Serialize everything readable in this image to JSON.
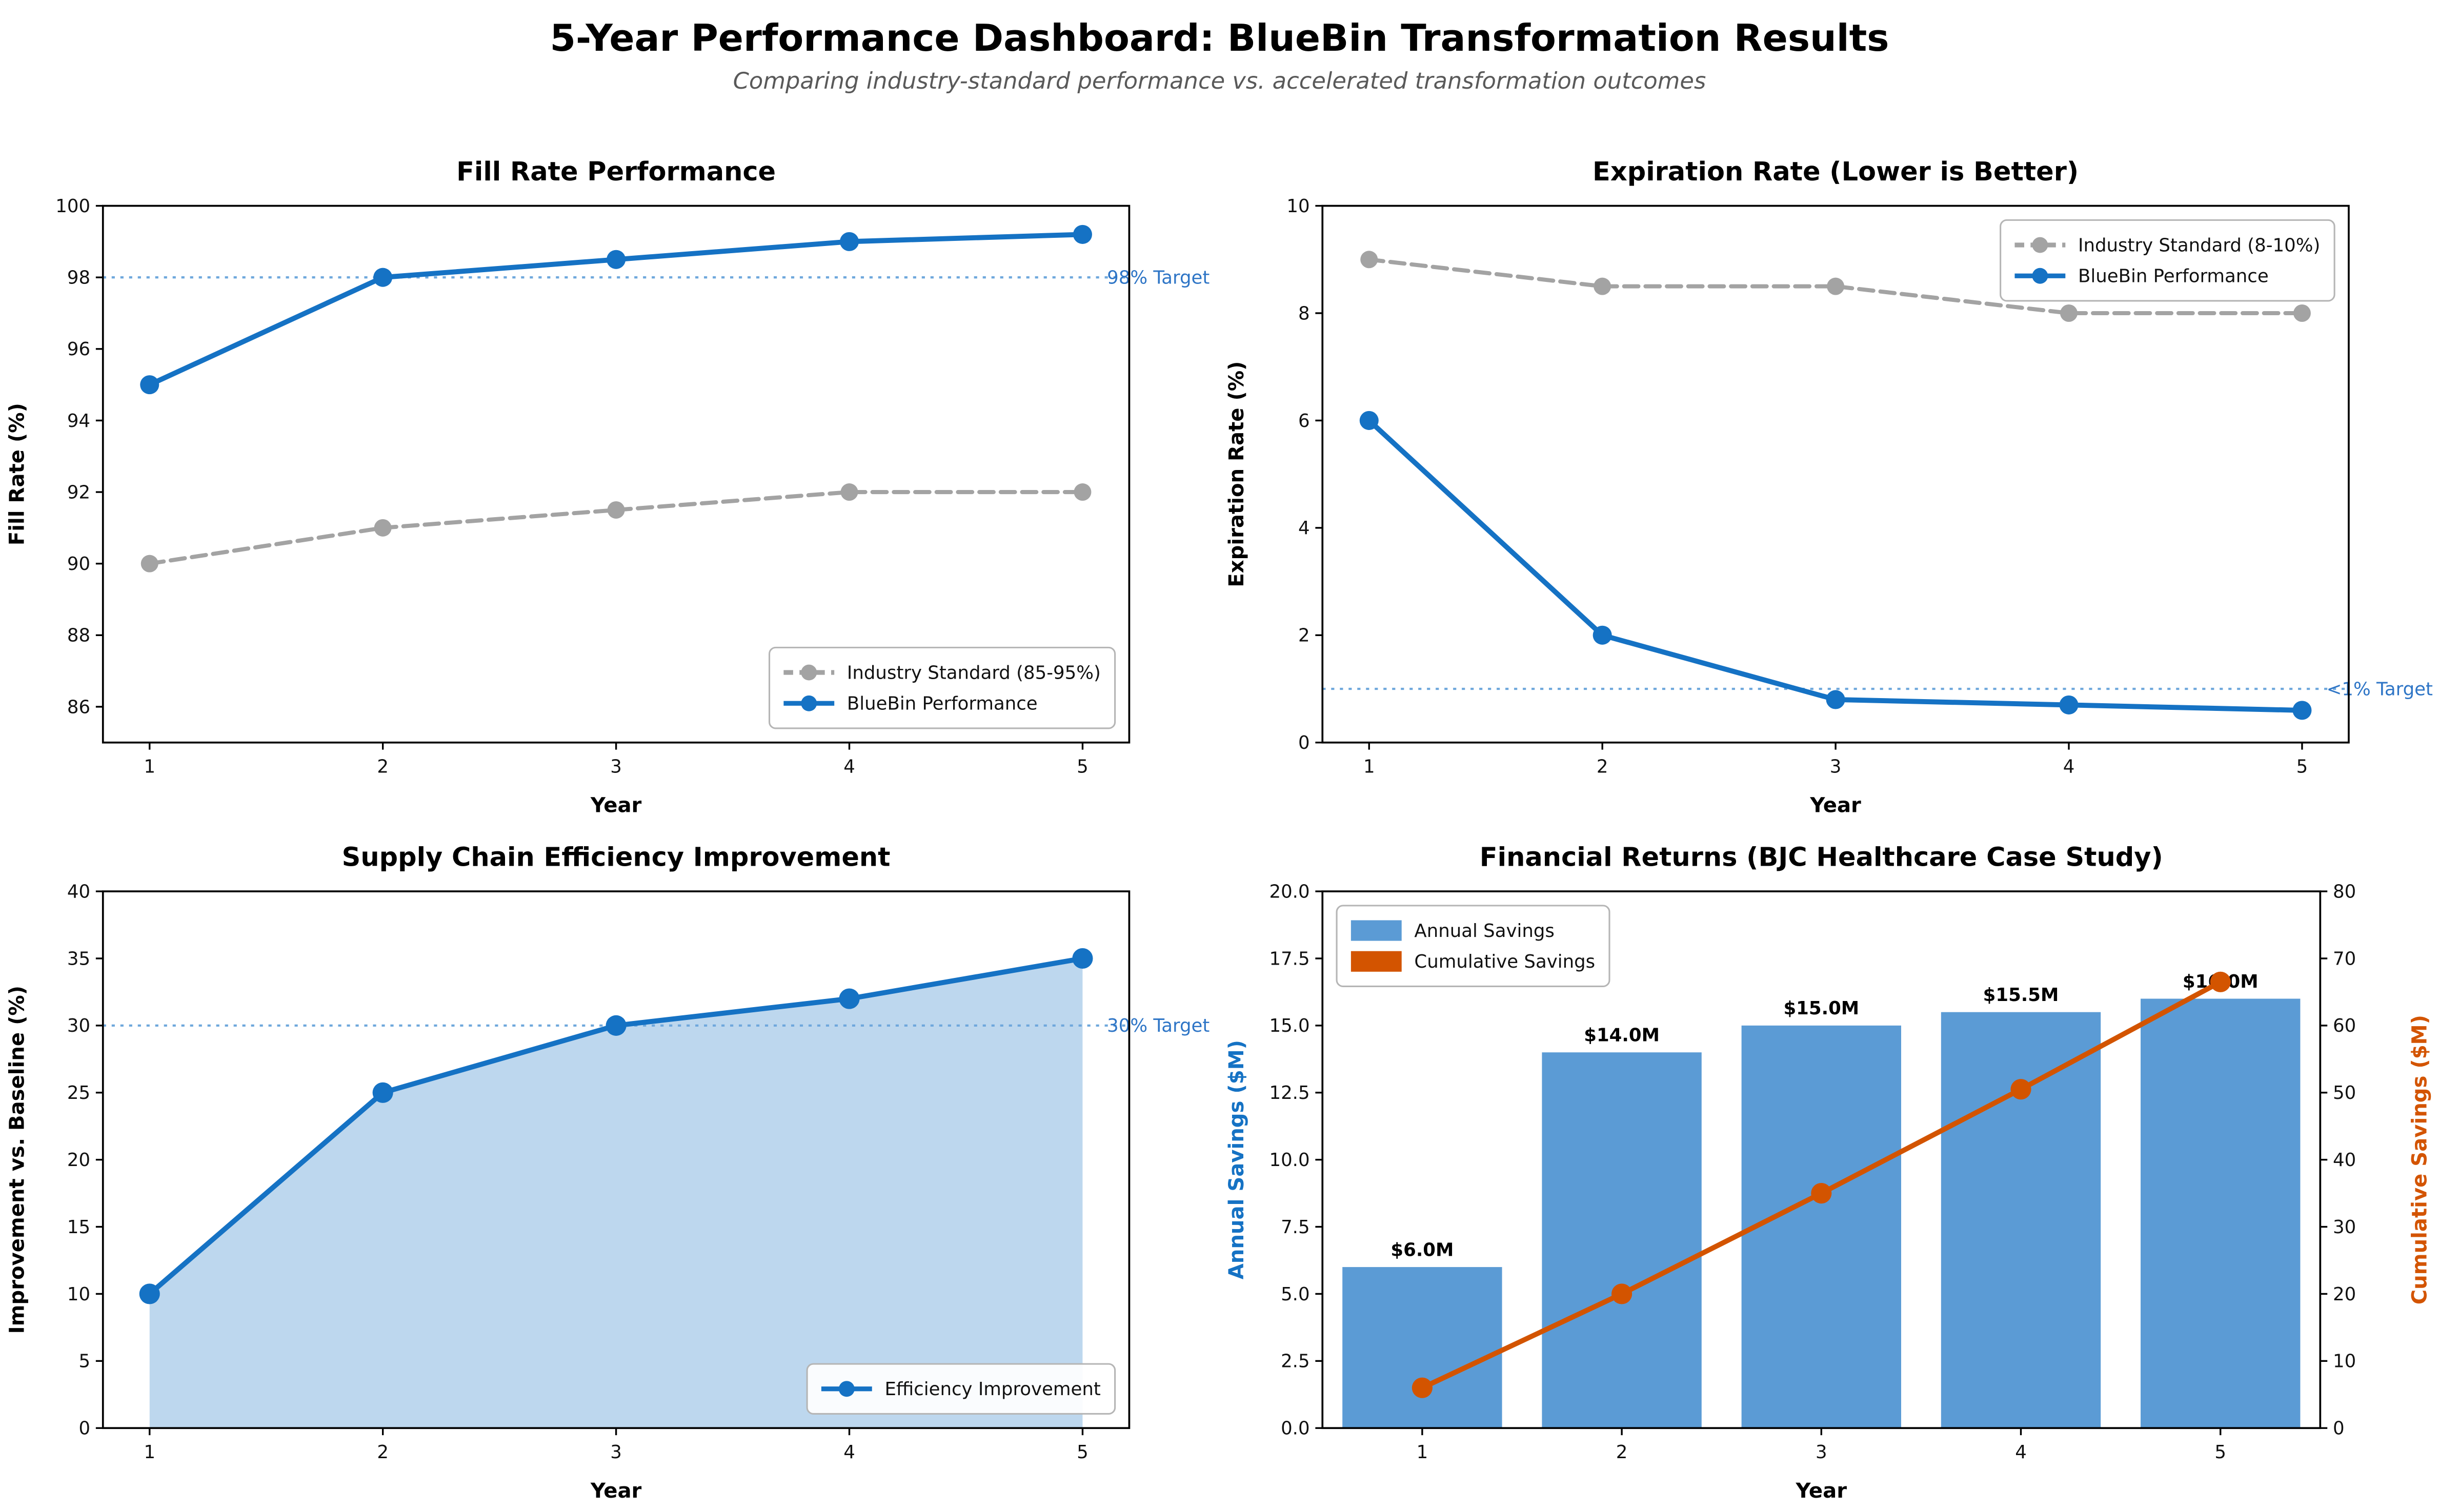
{
  "header": {
    "title": "5-Year Performance Dashboard: BlueBin Transformation Results",
    "subtitle": "Comparing industry-standard performance vs. accelerated transformation outcomes"
  },
  "colors": {
    "bluebin_blue": "#1572c4",
    "industry_gray": "#a3a3a3",
    "bar_blue": "#5b9bd5",
    "cumulative_orange": "#d35400",
    "target_line_blue": "#6fa8dc",
    "target_text_blue": "#2e75c6",
    "axis_black": "#000000",
    "subtitle_gray": "#595959"
  },
  "chart_data": [
    {
      "name": "fill-rate-performance",
      "type": "line",
      "title": "Fill Rate Performance",
      "xlabel": "Year",
      "ylabel": "Fill Rate (%)",
      "x": [
        1,
        2,
        3,
        4,
        5
      ],
      "xlim": [
        0.8,
        5.2
      ],
      "ylim": [
        85,
        100
      ],
      "xticks": [
        1,
        2,
        3,
        4,
        5
      ],
      "yticks": [
        86,
        88,
        90,
        92,
        94,
        96,
        98,
        100
      ],
      "series": [
        {
          "name": "Industry Standard (85-95%)",
          "values": [
            90,
            91,
            91.5,
            92,
            92
          ],
          "color": "#a3a3a3",
          "dash": "9 4.5",
          "width": 2.6,
          "marker": true,
          "marker_size": 5.5
        },
        {
          "name": "BlueBin Performance",
          "values": [
            95,
            98,
            98.5,
            99,
            99.2
          ],
          "color": "#1572c4",
          "width": 3.2,
          "marker": true,
          "marker_size": 6
        }
      ],
      "target": {
        "y": 98,
        "label": "98% Target"
      },
      "legend": {
        "position": "lower-right",
        "entries": [
          {
            "label": "Industry Standard (85-95%)",
            "type": "line",
            "color": "#a3a3a3",
            "dash": "6 4",
            "marker": true
          },
          {
            "label": "BlueBin Performance",
            "type": "line",
            "color": "#1572c4",
            "marker": true
          }
        ]
      }
    },
    {
      "name": "expiration-rate",
      "type": "line",
      "title": "Expiration Rate (Lower is Better)",
      "xlabel": "Year",
      "ylabel": "Expiration Rate (%)",
      "x": [
        1,
        2,
        3,
        4,
        5
      ],
      "xlim": [
        0.8,
        5.2
      ],
      "ylim": [
        0,
        10
      ],
      "xticks": [
        1,
        2,
        3,
        4,
        5
      ],
      "yticks": [
        0,
        2,
        4,
        6,
        8,
        10
      ],
      "series": [
        {
          "name": "Industry Standard (8-10%)",
          "values": [
            9,
            8.5,
            8.5,
            8,
            8
          ],
          "color": "#a3a3a3",
          "dash": "9 4.5",
          "width": 2.6,
          "marker": true,
          "marker_size": 5.5
        },
        {
          "name": "BlueBin Performance",
          "values": [
            6,
            2,
            0.8,
            0.7,
            0.6
          ],
          "color": "#1572c4",
          "width": 3.2,
          "marker": true,
          "marker_size": 6
        }
      ],
      "target": {
        "y": 1,
        "label": "<1% Target"
      },
      "legend": {
        "position": "upper-right",
        "entries": [
          {
            "label": "Industry Standard (8-10%)",
            "type": "line",
            "color": "#a3a3a3",
            "dash": "6 4",
            "marker": true
          },
          {
            "label": "BlueBin Performance",
            "type": "line",
            "color": "#1572c4",
            "marker": true
          }
        ]
      }
    },
    {
      "name": "supply-chain-efficiency",
      "type": "area",
      "title": "Supply Chain Efficiency Improvement",
      "xlabel": "Year",
      "ylabel": "Improvement vs. Baseline (%)",
      "x": [
        1,
        2,
        3,
        4,
        5
      ],
      "xlim": [
        0.8,
        5.2
      ],
      "ylim": [
        0,
        40
      ],
      "xticks": [
        1,
        2,
        3,
        4,
        5
      ],
      "yticks": [
        0,
        5,
        10,
        15,
        20,
        25,
        30,
        35,
        40
      ],
      "series": [
        {
          "name": "Efficiency Improvement",
          "values": [
            10,
            25,
            30,
            32,
            35
          ],
          "color": "#1572c4",
          "width": 3.2,
          "marker": true,
          "marker_size": 6.5,
          "fill": "rgba(91,155,213,0.4)"
        }
      ],
      "target": {
        "y": 30,
        "label": "30% Target"
      },
      "legend": {
        "position": "lower-right",
        "entries": [
          {
            "label": "Efficiency Improvement",
            "type": "line",
            "color": "#1572c4",
            "marker": true
          }
        ]
      }
    },
    {
      "name": "financial-returns",
      "type": "bar",
      "title": "Financial Returns (BJC Healthcare Case Study)",
      "xlabel": "Year",
      "ylabel": "Annual Savings ($M)",
      "ylabel_color": "#1572c4",
      "ylabel_right": "Cumulative Savings ($M)",
      "ylabel_right_color": "#d35400",
      "x": [
        1,
        2,
        3,
        4,
        5
      ],
      "xlim": [
        0.5,
        5.5
      ],
      "ylim": [
        0,
        20
      ],
      "ylim_right": [
        0,
        80
      ],
      "xticks": [
        1,
        2,
        3,
        4,
        5
      ],
      "yticks": [
        0,
        2.5,
        5,
        7.5,
        10,
        12.5,
        15,
        17.5,
        20
      ],
      "ytick_labels": [
        "0.0",
        "2.5",
        "5.0",
        "7.5",
        "10.0",
        "12.5",
        "15.0",
        "17.5",
        "20.0"
      ],
      "yticks_right": [
        0,
        10,
        20,
        30,
        40,
        50,
        60,
        70,
        80
      ],
      "bars": {
        "name": "Annual Savings",
        "values": [
          6,
          14,
          15,
          15.5,
          16
        ],
        "labels": [
          "$6.0M",
          "$14.0M",
          "$15.0M",
          "$15.5M",
          "$16.0M"
        ],
        "color": "#5b9bd5",
        "width": 0.8
      },
      "series": [
        {
          "name": "Cumulative Savings",
          "values": [
            6,
            20,
            35,
            50.5,
            66.5
          ],
          "color": "#d35400",
          "width": 3.2,
          "marker": true,
          "marker_size": 6.5,
          "axis": "right"
        }
      ],
      "legend": {
        "position": "upper-left",
        "entries": [
          {
            "label": "Annual Savings",
            "type": "patch",
            "color": "#5b9bd5"
          },
          {
            "label": "Cumulative Savings",
            "type": "patch",
            "color": "#d35400"
          }
        ]
      }
    }
  ]
}
